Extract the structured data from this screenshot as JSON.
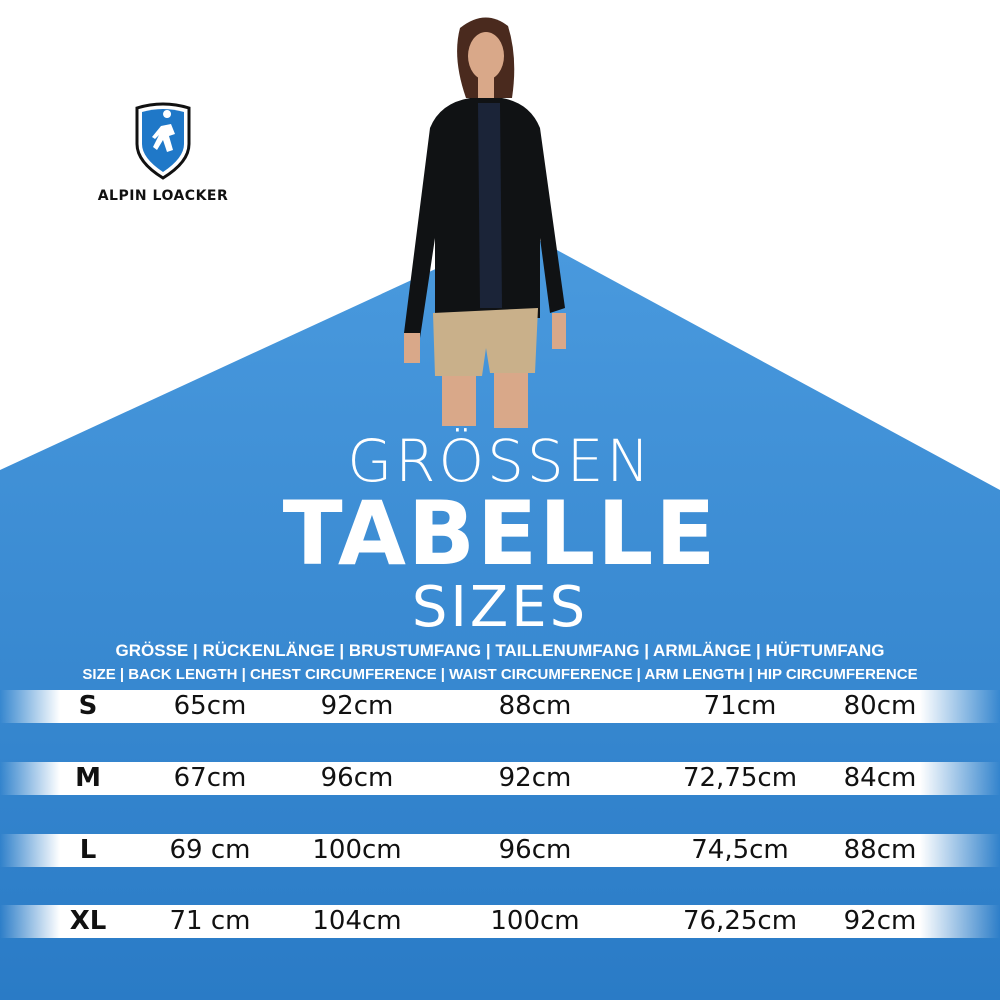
{
  "brand": {
    "name": "ALPIN LOACKER",
    "color": "#1f78c8"
  },
  "colors": {
    "background_blue": "#3a8fd6",
    "row_white": "#ffffff"
  },
  "title": {
    "line1": "GRÖSSEN",
    "line2": "TABELLE",
    "line3": "SIZES"
  },
  "headers": {
    "german": "GRÖSSE | RÜCKENLÄNGE | BRUSTUMFANG | TAILLENUMFANG | ARMLÄNGE | HÜFTUMFANG",
    "english": "SIZE | BACK LENGTH | CHEST CIRCUMFERENCE | WAIST CIRCUMFERENCE | ARM LENGTH | HIP CIRCUMFERENCE"
  },
  "rows": [
    {
      "size": "S",
      "back": "65cm",
      "chest": "92cm",
      "waist": "88cm",
      "arm": "71cm",
      "hip": "80cm"
    },
    {
      "size": "M",
      "back": "67cm",
      "chest": "96cm",
      "waist": "92cm",
      "arm": "72,75cm",
      "hip": "84cm"
    },
    {
      "size": "L",
      "back": "69 cm",
      "chest": "100cm",
      "waist": "96cm",
      "arm": "74,5cm",
      "hip": "88cm"
    },
    {
      "size": "XL",
      "back": "71 cm",
      "chest": "104cm",
      "waist": "100cm",
      "arm": "76,25cm",
      "hip": "92cm"
    }
  ]
}
